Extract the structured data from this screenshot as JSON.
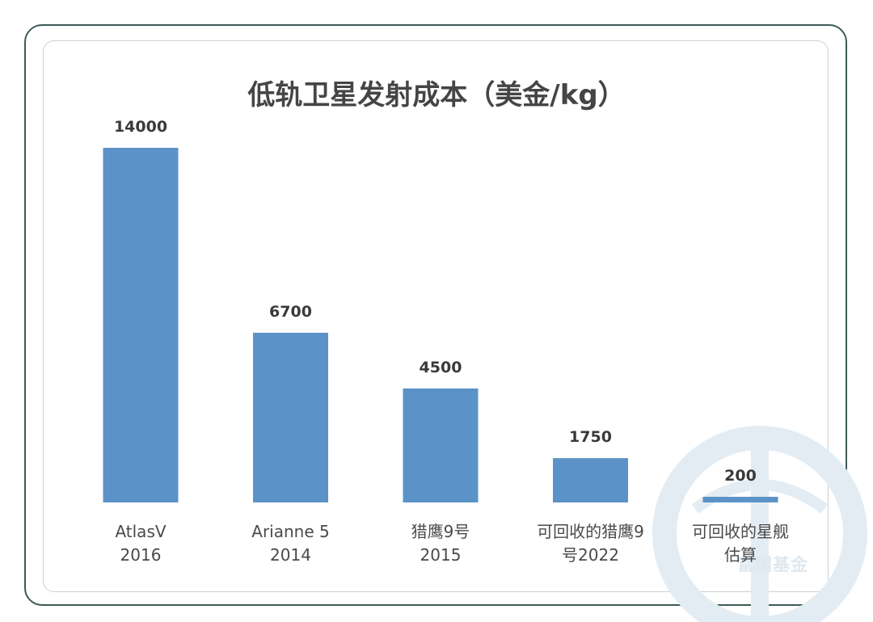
{
  "watermark": "富国基金",
  "chart_data": {
    "type": "bar",
    "title": "低轨卫星发射成本（美金/kg）",
    "xlabel": "",
    "ylabel": "",
    "ylim": [
      0,
      14000
    ],
    "grid": false,
    "legend": "none",
    "categories": [
      [
        "AtlasV",
        "2016"
      ],
      [
        "Arianne  5",
        "2014"
      ],
      [
        "猎鹰9号",
        "2015"
      ],
      [
        "可回收的猎鹰9",
        "号2022"
      ],
      [
        "可回收的星舰",
        "估算"
      ]
    ],
    "values": [
      14000,
      6700,
      4500,
      1750,
      200
    ],
    "colors": {
      "bar": "#5b93c8"
    }
  }
}
